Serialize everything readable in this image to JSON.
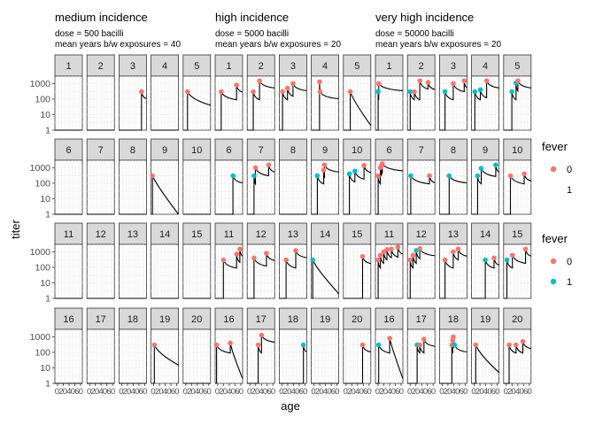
{
  "chart_data": {
    "type": "line",
    "xlabel": "age",
    "ylabel": "titer",
    "y_scale": "log10",
    "ylim": [
      1,
      3000
    ],
    "y_ticks": [
      "1",
      "10",
      "100",
      "1000"
    ],
    "x_tick_labels": "0204060",
    "groups": [
      {
        "title": "medium incidence",
        "subtitle_1": "dose = 500 bacilli",
        "subtitle_2": "mean years b/w exposures = 40",
        "panels": [
          {
            "id": "1",
            "events": []
          },
          {
            "id": "2",
            "events": []
          },
          {
            "id": "3",
            "events": [
              {
                "x": 0.82,
                "y": 300,
                "fever": 0
              }
            ]
          },
          {
            "id": "4",
            "events": []
          },
          {
            "id": "5",
            "events": [
              {
                "x": 0.16,
                "y": 300,
                "fever": 0
              }
            ],
            "final": 40
          },
          {
            "id": "6",
            "events": []
          },
          {
            "id": "7",
            "events": []
          },
          {
            "id": "8",
            "events": []
          },
          {
            "id": "9",
            "events": [
              {
                "x": 0.05,
                "y": 300,
                "fever": 0
              }
            ],
            "final": 1
          },
          {
            "id": "10",
            "events": []
          },
          {
            "id": "11",
            "events": []
          },
          {
            "id": "12",
            "events": []
          },
          {
            "id": "13",
            "events": []
          },
          {
            "id": "14",
            "events": []
          },
          {
            "id": "15",
            "events": []
          },
          {
            "id": "16",
            "events": []
          },
          {
            "id": "17",
            "events": []
          },
          {
            "id": "18",
            "events": []
          },
          {
            "id": "19",
            "events": [
              {
                "x": 0.12,
                "y": 300,
                "fever": 0
              }
            ],
            "final": 15
          },
          {
            "id": "20",
            "events": []
          }
        ]
      },
      {
        "title": "high incidence",
        "subtitle_1": "dose = 5000 bacilli",
        "subtitle_2": "mean years b/w exposures = 20",
        "panels": [
          {
            "id": "1",
            "events": [
              {
                "x": 0.22,
                "y": 300,
                "fever": 0
              },
              {
                "x": 0.78,
                "y": 800,
                "fever": 0
              }
            ]
          },
          {
            "id": "2",
            "events": [
              {
                "x": 0.22,
                "y": 300,
                "fever": 0
              },
              {
                "x": 0.45,
                "y": 1500,
                "fever": 0
              }
            ]
          },
          {
            "id": "3",
            "events": [
              {
                "x": 0.12,
                "y": 300,
                "fever": 0
              },
              {
                "x": 0.3,
                "y": 500,
                "fever": 0
              },
              {
                "x": 0.5,
                "y": 1000,
                "fever": 0
              }
            ]
          },
          {
            "id": "4",
            "events": [
              {
                "x": 0.3,
                "y": 1300,
                "fever": 0
              },
              {
                "x": 0.32,
                "y": 300,
                "fever": 0
              }
            ]
          },
          {
            "id": "5",
            "events": [
              {
                "x": 0.25,
                "y": 300,
                "fever": 0
              }
            ],
            "final": 2
          },
          {
            "id": "6",
            "events": [
              {
                "x": 0.65,
                "y": 300,
                "fever": 1
              }
            ]
          },
          {
            "id": "7",
            "events": [
              {
                "x": 0.25,
                "y": 300,
                "fever": 1
              },
              {
                "x": 0.3,
                "y": 1000,
                "fever": 0
              },
              {
                "x": 0.78,
                "y": 1500,
                "fever": 0
              }
            ]
          },
          {
            "id": "8",
            "events": []
          },
          {
            "id": "9",
            "events": [
              {
                "x": 0.22,
                "y": 300,
                "fever": 1
              },
              {
                "x": 0.45,
                "y": 700,
                "fever": 0
              },
              {
                "x": 0.48,
                "y": 1500,
                "fever": 0
              }
            ]
          },
          {
            "id": "10",
            "events": [
              {
                "x": 0.22,
                "y": 400,
                "fever": 1
              },
              {
                "x": 0.42,
                "y": 600,
                "fever": 1
              },
              {
                "x": 0.75,
                "y": 1400,
                "fever": 0
              }
            ]
          },
          {
            "id": "11",
            "events": [
              {
                "x": 0.3,
                "y": 300,
                "fever": 0
              },
              {
                "x": 0.78,
                "y": 700,
                "fever": 0
              },
              {
                "x": 0.9,
                "y": 1500,
                "fever": 0
              }
            ]
          },
          {
            "id": "12",
            "events": [
              {
                "x": 0.25,
                "y": 400,
                "fever": 0
              },
              {
                "x": 0.7,
                "y": 800,
                "fever": 0
              }
            ]
          },
          {
            "id": "13",
            "events": [
              {
                "x": 0.25,
                "y": 300,
                "fever": 0
              },
              {
                "x": 0.6,
                "y": 1200,
                "fever": 0
              }
            ]
          },
          {
            "id": "14",
            "events": [
              {
                "x": 0.05,
                "y": 300,
                "fever": 1
              }
            ],
            "final": 2
          },
          {
            "id": "15",
            "events": [
              {
                "x": 0.7,
                "y": 500,
                "fever": 0
              }
            ]
          },
          {
            "id": "16",
            "events": [
              {
                "x": 0.05,
                "y": 300,
                "fever": 0
              },
              {
                "x": 0.55,
                "y": 400,
                "fever": 0
              }
            ],
            "final": 2
          },
          {
            "id": "17",
            "events": [
              {
                "x": 0.4,
                "y": 300,
                "fever": 0
              },
              {
                "x": 0.52,
                "y": 1300,
                "fever": 0
              }
            ]
          },
          {
            "id": "18",
            "events": [
              {
                "x": 0.88,
                "y": 300,
                "fever": 1
              }
            ]
          },
          {
            "id": "19",
            "events": []
          },
          {
            "id": "20",
            "events": [
              {
                "x": 0.7,
                "y": 300,
                "fever": 0
              }
            ]
          }
        ]
      },
      {
        "title": "very high incidence",
        "subtitle_1": "dose = 50000 bacilli",
        "subtitle_2": "mean years b/w exposures = 20",
        "panels": [
          {
            "id": "1",
            "events": [
              {
                "x": 0.1,
                "y": 300,
                "fever": 1
              },
              {
                "x": 0.12,
                "y": 1000,
                "fever": 0
              }
            ]
          },
          {
            "id": "2",
            "events": [
              {
                "x": 0.1,
                "y": 300,
                "fever": 1
              },
              {
                "x": 0.25,
                "y": 300,
                "fever": 0
              },
              {
                "x": 0.45,
                "y": 1500,
                "fever": 0
              },
              {
                "x": 0.75,
                "y": 1200,
                "fever": 0
              }
            ]
          },
          {
            "id": "3",
            "events": [
              {
                "x": 0.2,
                "y": 300,
                "fever": 1
              },
              {
                "x": 0.5,
                "y": 1000,
                "fever": 0
              },
              {
                "x": 0.9,
                "y": 1500,
                "fever": 0
              }
            ]
          },
          {
            "id": "4",
            "events": [
              {
                "x": 0.12,
                "y": 300,
                "fever": 1
              },
              {
                "x": 0.32,
                "y": 400,
                "fever": 1
              },
              {
                "x": 0.55,
                "y": 1500,
                "fever": 0
              }
            ]
          },
          {
            "id": "5",
            "events": [
              {
                "x": 0.3,
                "y": 300,
                "fever": 1
              },
              {
                "x": 0.45,
                "y": 1100,
                "fever": 1
              },
              {
                "x": 0.52,
                "y": 1500,
                "fever": 0
              }
            ]
          },
          {
            "id": "6",
            "events": [
              {
                "x": 0.1,
                "y": 300,
                "fever": 0
              },
              {
                "x": 0.18,
                "y": 1000,
                "fever": 0
              },
              {
                "x": 0.22,
                "y": 1400,
                "fever": 0
              },
              {
                "x": 0.25,
                "y": 1800,
                "fever": 0
              }
            ]
          },
          {
            "id": "7",
            "events": [
              {
                "x": 0.12,
                "y": 300,
                "fever": 1
              },
              {
                "x": 0.8,
                "y": 300,
                "fever": 0
              }
            ]
          },
          {
            "id": "8",
            "events": [
              {
                "x": 0.35,
                "y": 300,
                "fever": 1
              }
            ]
          },
          {
            "id": "9",
            "events": [
              {
                "x": 0.22,
                "y": 300,
                "fever": 1
              },
              {
                "x": 0.35,
                "y": 900,
                "fever": 1
              },
              {
                "x": 0.88,
                "y": 1500,
                "fever": 1
              }
            ]
          },
          {
            "id": "10",
            "events": [
              {
                "x": 0.25,
                "y": 300,
                "fever": 0
              },
              {
                "x": 0.75,
                "y": 400,
                "fever": 0
              }
            ]
          },
          {
            "id": "11",
            "events": [
              {
                "x": 0.1,
                "y": 300,
                "fever": 0
              },
              {
                "x": 0.18,
                "y": 600,
                "fever": 0
              },
              {
                "x": 0.3,
                "y": 1000,
                "fever": 0
              },
              {
                "x": 0.42,
                "y": 1400,
                "fever": 0
              },
              {
                "x": 0.58,
                "y": 1500,
                "fever": 0
              },
              {
                "x": 0.82,
                "y": 2000,
                "fever": 0
              }
            ]
          },
          {
            "id": "12",
            "events": [
              {
                "x": 0.1,
                "y": 300,
                "fever": 0
              },
              {
                "x": 0.2,
                "y": 600,
                "fever": 0
              },
              {
                "x": 0.32,
                "y": 1200,
                "fever": 1
              },
              {
                "x": 0.45,
                "y": 1600,
                "fever": 0
              }
            ]
          },
          {
            "id": "13",
            "events": [
              {
                "x": 0.2,
                "y": 300,
                "fever": 0
              },
              {
                "x": 0.5,
                "y": 1000,
                "fever": 0
              },
              {
                "x": 0.68,
                "y": 1500,
                "fever": 0
              }
            ]
          },
          {
            "id": "14",
            "events": [
              {
                "x": 0.5,
                "y": 300,
                "fever": 1
              },
              {
                "x": 0.82,
                "y": 400,
                "fever": 0
              }
            ]
          },
          {
            "id": "15",
            "events": [
              {
                "x": 0.12,
                "y": 300,
                "fever": 1
              },
              {
                "x": 0.32,
                "y": 600,
                "fever": 0
              },
              {
                "x": 0.8,
                "y": 1500,
                "fever": 0
              }
            ]
          },
          {
            "id": "16",
            "events": [
              {
                "x": 0.12,
                "y": 300,
                "fever": 1
              },
              {
                "x": 0.52,
                "y": 800,
                "fever": 0
              }
            ],
            "final": 2
          },
          {
            "id": "17",
            "events": [
              {
                "x": 0.35,
                "y": 300,
                "fever": 1
              },
              {
                "x": 0.45,
                "y": 300,
                "fever": 0
              },
              {
                "x": 0.6,
                "y": 700,
                "fever": 0
              }
            ]
          },
          {
            "id": "18",
            "events": [
              {
                "x": 0.45,
                "y": 300,
                "fever": 0
              },
              {
                "x": 0.48,
                "y": 600,
                "fever": 0
              },
              {
                "x": 0.5,
                "y": 1000,
                "fever": 0
              },
              {
                "x": 0.55,
                "y": 300,
                "fever": 1
              }
            ]
          },
          {
            "id": "19",
            "events": [
              {
                "x": 0.15,
                "y": 300,
                "fever": 0
              }
            ],
            "final": 5
          },
          {
            "id": "20",
            "events": [
              {
                "x": 0.2,
                "y": 300,
                "fever": 0
              },
              {
                "x": 0.45,
                "y": 300,
                "fever": 0
              },
              {
                "x": 0.7,
                "y": 500,
                "fever": 0
              }
            ]
          }
        ]
      }
    ],
    "legends": [
      {
        "title": "fever",
        "entries": [
          {
            "label": "0",
            "color": "#F8766D",
            "show_dot": true
          },
          {
            "label": "1",
            "color": "#00BFC4",
            "show_dot": false
          }
        ]
      },
      {
        "title": "fever",
        "entries": [
          {
            "label": "0",
            "color": "#F8766D",
            "show_dot": true
          },
          {
            "label": "1",
            "color": "#00BFC4",
            "show_dot": true
          }
        ]
      }
    ],
    "colors": {
      "fever_0": "#F8766D",
      "fever_1": "#00BFC4",
      "strip_fill": "#D9D9D9",
      "strip_border": "#333333",
      "grid": "#EBEBEB",
      "line": "#000000"
    }
  }
}
